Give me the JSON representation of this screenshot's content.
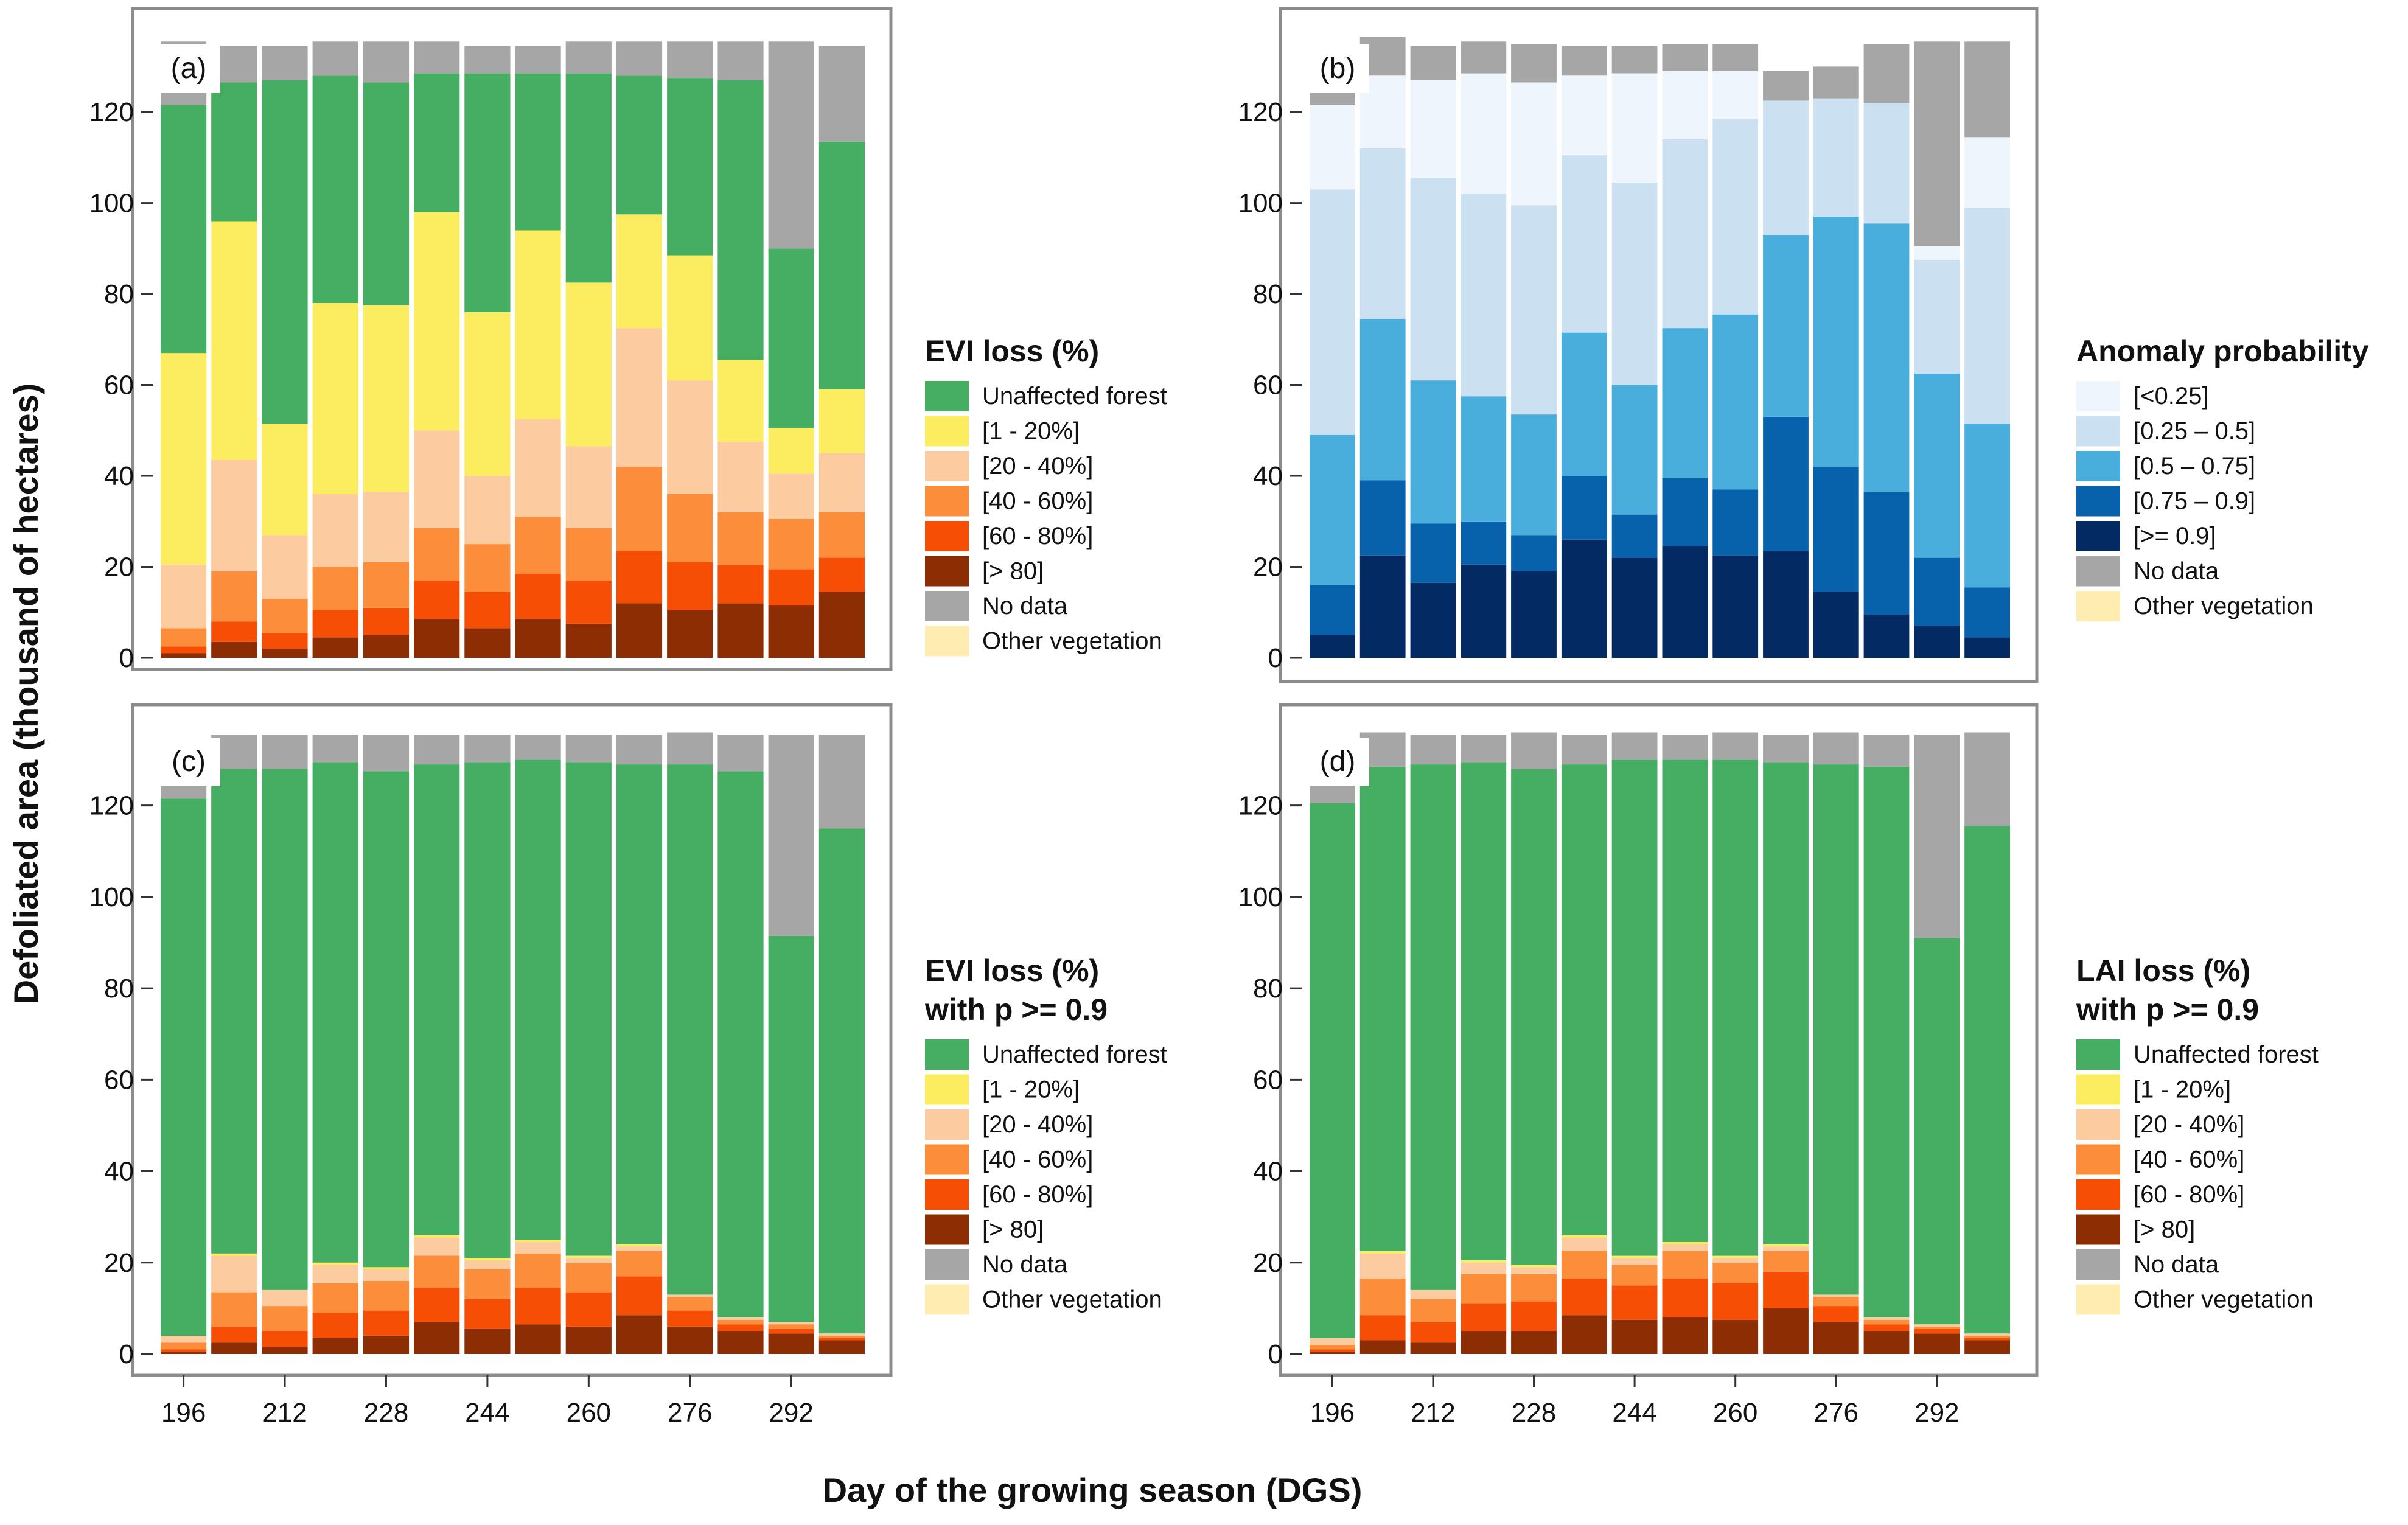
{
  "figure": {
    "ylabel": "Defoliated area (thousand of hectares)",
    "xlabel": "Day of the growing season (DGS)",
    "x_ticks": [
      "196",
      "212",
      "228",
      "244",
      "260",
      "276",
      "292"
    ],
    "y_ticks": [
      "0",
      "20",
      "40",
      "60",
      "80",
      "100",
      "120"
    ],
    "ylim": [
      0,
      135
    ]
  },
  "chart_data": [
    {
      "type": "bar",
      "stacked": true,
      "tag": "(a)",
      "legend_title": [
        "EVI loss (%)"
      ],
      "x": [
        196,
        204,
        212,
        220,
        228,
        236,
        244,
        252,
        260,
        268,
        276,
        284,
        292,
        300
      ],
      "series": [
        {
          "name": "[> 80]",
          "color": "#8c2d04",
          "values": [
            1.0,
            3.5,
            2.0,
            4.5,
            5.0,
            8.5,
            6.5,
            8.5,
            7.5,
            12.0,
            10.5,
            12.0,
            11.5,
            14.5
          ]
        },
        {
          "name": "[60 - 80%]",
          "color": "#f74e06",
          "values": [
            1.5,
            4.5,
            3.5,
            6.0,
            6.0,
            8.5,
            8.0,
            10.0,
            9.5,
            11.5,
            10.5,
            8.5,
            8.0,
            7.5
          ]
        },
        {
          "name": "[40 - 60%]",
          "color": "#fc8d3b",
          "values": [
            4.0,
            11.0,
            7.5,
            9.5,
            10.0,
            11.5,
            10.5,
            12.5,
            11.5,
            18.5,
            15.0,
            11.5,
            11.0,
            10.0
          ]
        },
        {
          "name": "[20 - 40%]",
          "color": "#fdcba0",
          "values": [
            14.0,
            24.5,
            14.0,
            16.0,
            15.5,
            21.5,
            15.0,
            21.5,
            18.0,
            30.5,
            25.0,
            15.5,
            10.0,
            13.0
          ]
        },
        {
          "name": "[1 - 20%]",
          "color": "#fbed5f",
          "values": [
            46.5,
            52.5,
            24.5,
            42.0,
            41.0,
            48.0,
            36.0,
            41.5,
            36.0,
            25.0,
            27.5,
            18.0,
            10.0,
            14.0
          ]
        },
        {
          "name": "Unaffected forest",
          "color": "#46ae63",
          "values": [
            54.5,
            30.5,
            75.5,
            50.0,
            49.0,
            30.5,
            52.5,
            34.5,
            46.0,
            30.5,
            39.0,
            61.5,
            39.5,
            54.5
          ]
        },
        {
          "name": "No data",
          "color": "#a6a6a6",
          "values": [
            14.0,
            8.0,
            7.5,
            7.5,
            9.0,
            7.0,
            6.0,
            6.0,
            7.0,
            7.5,
            8.0,
            8.5,
            45.5,
            21.0
          ]
        }
      ],
      "legend": [
        {
          "label": "Unaffected forest",
          "color": "#46ae63"
        },
        {
          "label": "[1 - 20%]",
          "color": "#fbed5f"
        },
        {
          "label": "[20 - 40%]",
          "color": "#fdcba0"
        },
        {
          "label": "[40 - 60%]",
          "color": "#fc8d3b"
        },
        {
          "label": "[60 - 80%]",
          "color": "#f74e06"
        },
        {
          "label": "[> 80]",
          "color": "#8c2d04"
        },
        {
          "label": "No data",
          "color": "#a6a6a6"
        },
        {
          "label": "Other vegetation",
          "color": "#ffecb0"
        }
      ]
    },
    {
      "type": "bar",
      "stacked": true,
      "tag": "(b)",
      "legend_title": [
        "Anomaly probability"
      ],
      "x": [
        196,
        204,
        212,
        220,
        228,
        236,
        244,
        252,
        260,
        268,
        276,
        284,
        292,
        300
      ],
      "series": [
        {
          "name": "[>= 0.9]",
          "color": "#042a64",
          "values": [
            5.0,
            22.5,
            16.5,
            20.5,
            19.0,
            26.0,
            22.0,
            24.5,
            22.5,
            23.5,
            14.5,
            9.5,
            7.0,
            4.5
          ]
        },
        {
          "name": "[0.75 – 0.9]",
          "color": "#0862ab",
          "values": [
            11.0,
            16.5,
            13.0,
            9.5,
            8.0,
            14.0,
            9.5,
            15.0,
            14.5,
            29.5,
            27.5,
            27.0,
            15.0,
            11.0
          ]
        },
        {
          "name": "[0.5 – 0.75]",
          "color": "#49aedb",
          "values": [
            33.0,
            35.5,
            31.5,
            27.5,
            26.5,
            31.5,
            28.5,
            33.0,
            38.5,
            40.0,
            55.0,
            59.0,
            40.5,
            36.0
          ]
        },
        {
          "name": "[0.25 – 0.5]",
          "color": "#cbe1f2",
          "values": [
            54.0,
            37.5,
            44.5,
            44.5,
            46.0,
            39.0,
            44.5,
            41.5,
            43.0,
            29.5,
            26.0,
            26.5,
            25.0,
            47.5
          ]
        },
        {
          "name": "[<0.25]",
          "color": "#eef5fc",
          "values": [
            18.5,
            16.0,
            21.5,
            26.5,
            27.0,
            17.5,
            24.0,
            15.0,
            10.5,
            0.0,
            0.0,
            0.0,
            3.0,
            15.5
          ]
        },
        {
          "name": "No data",
          "color": "#a6a6a6",
          "values": [
            13.0,
            8.5,
            7.5,
            7.0,
            8.5,
            6.5,
            6.0,
            6.0,
            6.0,
            6.5,
            7.0,
            13.0,
            45.0,
            21.0
          ]
        }
      ],
      "legend": [
        {
          "label": "[<0.25]",
          "color": "#eef5fc"
        },
        {
          "label": "[0.25 – 0.5]",
          "color": "#cbe1f2"
        },
        {
          "label": "[0.5 – 0.75]",
          "color": "#49aedb"
        },
        {
          "label": "[0.75 – 0.9]",
          "color": "#0862ab"
        },
        {
          "label": "[>= 0.9]",
          "color": "#042a64"
        },
        {
          "label": "No data",
          "color": "#a6a6a6"
        },
        {
          "label": "Other vegetation",
          "color": "#ffecb0"
        }
      ]
    },
    {
      "type": "bar",
      "stacked": true,
      "tag": "(c)",
      "legend_title": [
        "EVI loss (%)",
        "with p >= 0.9"
      ],
      "x": [
        196,
        204,
        212,
        220,
        228,
        236,
        244,
        252,
        260,
        268,
        276,
        284,
        292,
        300
      ],
      "series": [
        {
          "name": "[> 80]",
          "color": "#8c2d04",
          "values": [
            0.5,
            2.5,
            1.5,
            3.5,
            4.0,
            7.0,
            5.5,
            6.5,
            6.0,
            8.5,
            6.0,
            5.0,
            4.5,
            3.0
          ]
        },
        {
          "name": "[60 - 80%]",
          "color": "#f74e06",
          "values": [
            0.5,
            3.5,
            3.5,
            5.5,
            5.5,
            7.5,
            6.5,
            8.0,
            7.5,
            8.5,
            3.5,
            1.5,
            1.0,
            0.5
          ]
        },
        {
          "name": "[40 - 60%]",
          "color": "#fc8d3b",
          "values": [
            1.5,
            7.5,
            5.5,
            6.5,
            6.5,
            7.0,
            6.5,
            7.5,
            6.5,
            5.5,
            3.0,
            1.0,
            1.0,
            0.5
          ]
        },
        {
          "name": "[20 - 40%]",
          "color": "#fdcba0",
          "values": [
            1.5,
            8.0,
            3.5,
            4.0,
            2.5,
            4.0,
            2.0,
            2.5,
            1.0,
            1.0,
            0.5,
            0.5,
            0.5,
            0.5
          ]
        },
        {
          "name": "[1 - 20%]",
          "color": "#fbed5f",
          "values": [
            0.0,
            0.5,
            0.0,
            0.5,
            0.5,
            0.5,
            0.5,
            0.5,
            0.5,
            0.5,
            0.0,
            0.0,
            0.0,
            0.0
          ]
        },
        {
          "name": "Unaffected forest",
          "color": "#46ae63",
          "values": [
            117.5,
            106.0,
            114.0,
            109.5,
            108.5,
            103.0,
            108.5,
            105.0,
            108.0,
            105.0,
            116.0,
            119.5,
            84.5,
            110.5
          ]
        },
        {
          "name": "No data",
          "color": "#a6a6a6",
          "values": [
            13.0,
            7.5,
            7.5,
            6.0,
            8.0,
            6.5,
            6.0,
            5.5,
            6.0,
            6.5,
            7.0,
            8.0,
            44.0,
            20.5
          ]
        }
      ],
      "legend": [
        {
          "label": "Unaffected forest",
          "color": "#46ae63"
        },
        {
          "label": "[1 - 20%]",
          "color": "#fbed5f"
        },
        {
          "label": "[20 - 40%]",
          "color": "#fdcba0"
        },
        {
          "label": "[40 - 60%]",
          "color": "#fc8d3b"
        },
        {
          "label": "[60 - 80%]",
          "color": "#f74e06"
        },
        {
          "label": "[> 80]",
          "color": "#8c2d04"
        },
        {
          "label": "No data",
          "color": "#a6a6a6"
        },
        {
          "label": "Other vegetation",
          "color": "#ffecb0"
        }
      ]
    },
    {
      "type": "bar",
      "stacked": true,
      "tag": "(d)",
      "legend_title": [
        "LAI loss (%)",
        "with p >= 0.9"
      ],
      "x": [
        196,
        204,
        212,
        220,
        228,
        236,
        244,
        252,
        260,
        268,
        276,
        284,
        292,
        300
      ],
      "series": [
        {
          "name": "[> 80]",
          "color": "#8c2d04",
          "values": [
            0.5,
            3.0,
            2.5,
            5.0,
            5.0,
            8.5,
            7.5,
            8.0,
            7.5,
            10.0,
            7.0,
            5.0,
            4.5,
            3.0
          ]
        },
        {
          "name": "[60 - 80%]",
          "color": "#f74e06",
          "values": [
            0.5,
            5.5,
            4.5,
            6.0,
            6.5,
            8.0,
            7.5,
            8.5,
            8.0,
            8.0,
            3.5,
            1.5,
            1.0,
            0.5
          ]
        },
        {
          "name": "[40 - 60%]",
          "color": "#fc8d3b",
          "values": [
            1.0,
            8.0,
            5.0,
            6.5,
            6.0,
            6.0,
            4.5,
            6.0,
            4.5,
            4.5,
            2.0,
            1.0,
            0.5,
            0.5
          ]
        },
        {
          "name": "[20 - 40%]",
          "color": "#fdcba0",
          "values": [
            1.5,
            5.5,
            2.0,
            2.5,
            1.5,
            3.0,
            1.5,
            1.5,
            1.0,
            1.0,
            0.5,
            0.5,
            0.5,
            0.5
          ]
        },
        {
          "name": "[1 - 20%]",
          "color": "#fbed5f",
          "values": [
            0.0,
            0.5,
            0.0,
            0.5,
            0.5,
            0.5,
            0.5,
            0.5,
            0.5,
            0.5,
            0.0,
            0.0,
            0.0,
            0.0
          ]
        },
        {
          "name": "Unaffected forest",
          "color": "#46ae63",
          "values": [
            117.0,
            106.0,
            115.0,
            109.0,
            108.5,
            103.0,
            108.5,
            105.5,
            108.5,
            105.5,
            116.0,
            120.5,
            84.5,
            111.0
          ]
        },
        {
          "name": "No data",
          "color": "#a6a6a6",
          "values": [
            13.5,
            7.5,
            6.5,
            6.0,
            8.0,
            6.5,
            6.0,
            5.5,
            6.0,
            6.0,
            7.0,
            7.0,
            44.5,
            20.5
          ]
        }
      ],
      "legend": [
        {
          "label": "Unaffected forest",
          "color": "#46ae63"
        },
        {
          "label": "[1 - 20%]",
          "color": "#fbed5f"
        },
        {
          "label": "[20 - 40%]",
          "color": "#fdcba0"
        },
        {
          "label": "[40 - 60%]",
          "color": "#fc8d3b"
        },
        {
          "label": "[60 - 80%]",
          "color": "#f74e06"
        },
        {
          "label": "[> 80]",
          "color": "#8c2d04"
        },
        {
          "label": "No data",
          "color": "#a6a6a6"
        },
        {
          "label": "Other vegetation",
          "color": "#ffecb0"
        }
      ]
    }
  ]
}
